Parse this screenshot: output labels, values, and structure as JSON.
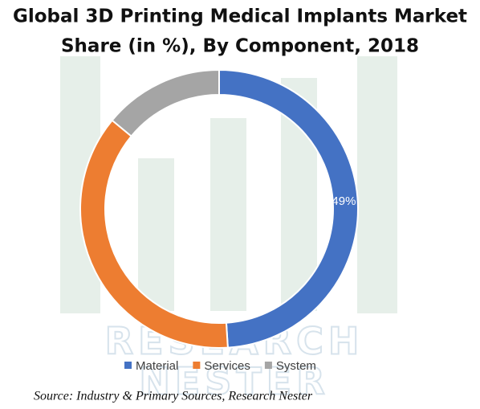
{
  "chart_data": {
    "type": "pie",
    "title": [
      "Global 3D Printing Medical Implants Market",
      "Share (in %), By Component, 2018"
    ],
    "categories": [
      "Material",
      "Services",
      "System"
    ],
    "values": [
      49,
      37,
      14
    ],
    "value_labels": [
      "49%",
      null,
      null
    ],
    "colors": [
      "#4472c4",
      "#ed7d31",
      "#a5a5a5"
    ],
    "donut": true,
    "legend": "bottom",
    "watermark": [
      "RESEARCH",
      "NESTER"
    ],
    "source": "Source: Industry & Primary Sources, Research Nester"
  }
}
